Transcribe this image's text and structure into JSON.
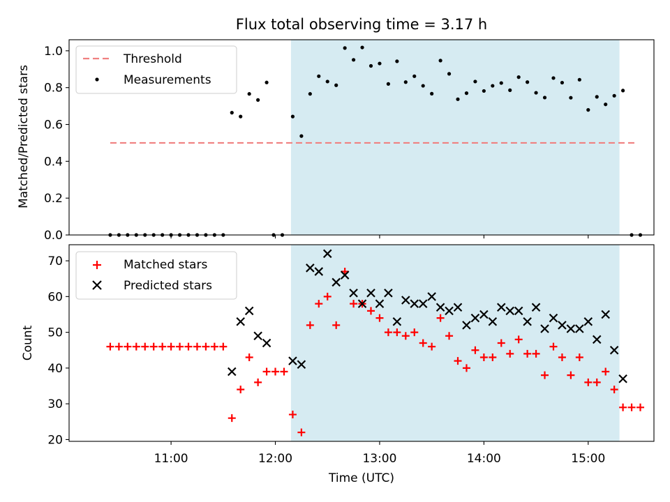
{
  "chart_data": [
    {
      "type": "scatter",
      "title": "Flux total observing time = 3.17 h",
      "ylabel": "Matched/Predicted stars",
      "ylim": [
        0,
        1.06
      ],
      "yticks": [
        "0.0",
        "0.2",
        "0.4",
        "0.6",
        "0.8",
        "1.0"
      ],
      "grid": false,
      "legend": {
        "position": "top-left",
        "entries": [
          "Threshold",
          "Measurements"
        ]
      },
      "shaded_interval": {
        "start": "12:09",
        "end": "15:18",
        "color": "#add8e6"
      },
      "threshold": {
        "name": "Threshold",
        "value": 0.5,
        "x_start": "10:25",
        "x_end": "15:28",
        "color": "#f08080",
        "style": "dashed"
      },
      "series": [
        {
          "name": "Measurements",
          "color": "#000000",
          "points": [
            [
              "10:25",
              0
            ],
            [
              "10:30",
              0
            ],
            [
              "10:35",
              0
            ],
            [
              "10:40",
              0
            ],
            [
              "10:45",
              0
            ],
            [
              "10:50",
              0
            ],
            [
              "10:55",
              0
            ],
            [
              "11:00",
              0
            ],
            [
              "11:05",
              0
            ],
            [
              "11:10",
              0
            ],
            [
              "11:15",
              0
            ],
            [
              "11:20",
              0
            ],
            [
              "11:25",
              0
            ],
            [
              "11:30",
              0
            ],
            [
              "11:35",
              0.664
            ],
            [
              "11:40",
              0.643
            ],
            [
              "11:45",
              0.766
            ],
            [
              "11:50",
              0.733
            ],
            [
              "11:55",
              0.828
            ],
            [
              "11:59",
              0
            ],
            [
              "12:04",
              0
            ],
            [
              "12:10",
              0.643
            ],
            [
              "12:15",
              0.537
            ],
            [
              "12:20",
              0.766
            ],
            [
              "12:25",
              0.862
            ],
            [
              "12:30",
              0.833
            ],
            [
              "12:35",
              0.813
            ],
            [
              "12:40",
              1.015
            ],
            [
              "12:45",
              0.951
            ],
            [
              "12:50",
              1.018
            ],
            [
              "12:55",
              0.918
            ],
            [
              "13:00",
              0.931
            ],
            [
              "13:05",
              0.82
            ],
            [
              "13:10",
              0.943
            ],
            [
              "13:15",
              0.83
            ],
            [
              "13:20",
              0.862
            ],
            [
              "13:25",
              0.81
            ],
            [
              "13:30",
              0.767
            ],
            [
              "13:35",
              0.947
            ],
            [
              "13:40",
              0.875
            ],
            [
              "13:45",
              0.737
            ],
            [
              "13:50",
              0.77
            ],
            [
              "13:55",
              0.833
            ],
            [
              "14:00",
              0.782
            ],
            [
              "14:05",
              0.81
            ],
            [
              "14:10",
              0.825
            ],
            [
              "14:15",
              0.786
            ],
            [
              "14:20",
              0.857
            ],
            [
              "14:25",
              0.83
            ],
            [
              "14:30",
              0.772
            ],
            [
              "14:35",
              0.746
            ],
            [
              "14:40",
              0.852
            ],
            [
              "14:45",
              0.827
            ],
            [
              "14:50",
              0.745
            ],
            [
              "14:55",
              0.843
            ],
            [
              "15:00",
              0.679
            ],
            [
              "15:05",
              0.75
            ],
            [
              "15:10",
              0.709
            ],
            [
              "15:15",
              0.756
            ],
            [
              "15:20",
              0.784
            ],
            [
              "15:25",
              0
            ],
            [
              "15:30",
              0
            ]
          ]
        }
      ]
    },
    {
      "type": "scatter",
      "xlabel": "Time (UTC)",
      "ylabel": "Count",
      "ylim": [
        19.5,
        74.5
      ],
      "yticks": [
        "20",
        "30",
        "40",
        "50",
        "60",
        "70"
      ],
      "xticks": [
        "11:00",
        "12:00",
        "13:00",
        "14:00",
        "15:00"
      ],
      "grid": false,
      "legend": {
        "position": "top-left",
        "entries": [
          "Matched stars",
          "Predicted stars"
        ]
      },
      "shaded_interval": {
        "start": "12:09",
        "end": "15:18",
        "color": "#add8e6"
      },
      "series": [
        {
          "name": "Matched stars",
          "color": "#ff0000",
          "marker": "plus",
          "points": [
            [
              "10:25",
              46
            ],
            [
              "10:30",
              46
            ],
            [
              "10:35",
              46
            ],
            [
              "10:40",
              46
            ],
            [
              "10:45",
              46
            ],
            [
              "10:50",
              46
            ],
            [
              "10:55",
              46
            ],
            [
              "11:00",
              46
            ],
            [
              "11:05",
              46
            ],
            [
              "11:10",
              46
            ],
            [
              "11:15",
              46
            ],
            [
              "11:20",
              46
            ],
            [
              "11:25",
              46
            ],
            [
              "11:30",
              46
            ],
            [
              "11:35",
              26
            ],
            [
              "11:40",
              34
            ],
            [
              "11:45",
              43
            ],
            [
              "11:50",
              36
            ],
            [
              "11:55",
              39
            ],
            [
              "12:00",
              39
            ],
            [
              "12:05",
              39
            ],
            [
              "12:10",
              27
            ],
            [
              "12:15",
              22
            ],
            [
              "12:20",
              52
            ],
            [
              "12:25",
              58
            ],
            [
              "12:30",
              60
            ],
            [
              "12:35",
              52
            ],
            [
              "12:40",
              67
            ],
            [
              "12:45",
              58
            ],
            [
              "12:50",
              58
            ],
            [
              "12:55",
              56
            ],
            [
              "13:00",
              54
            ],
            [
              "13:05",
              50
            ],
            [
              "13:10",
              50
            ],
            [
              "13:15",
              49
            ],
            [
              "13:20",
              50
            ],
            [
              "13:25",
              47
            ],
            [
              "13:30",
              46
            ],
            [
              "13:35",
              54
            ],
            [
              "13:40",
              49
            ],
            [
              "13:45",
              42
            ],
            [
              "13:50",
              40
            ],
            [
              "13:55",
              45
            ],
            [
              "14:00",
              43
            ],
            [
              "14:05",
              43
            ],
            [
              "14:10",
              47
            ],
            [
              "14:15",
              44
            ],
            [
              "14:20",
              48
            ],
            [
              "14:25",
              44
            ],
            [
              "14:30",
              44
            ],
            [
              "14:35",
              38
            ],
            [
              "14:40",
              46
            ],
            [
              "14:45",
              43
            ],
            [
              "14:50",
              38
            ],
            [
              "14:55",
              43
            ],
            [
              "15:00",
              36
            ],
            [
              "15:05",
              36
            ],
            [
              "15:10",
              39
            ],
            [
              "15:15",
              34
            ],
            [
              "15:20",
              29
            ],
            [
              "15:25",
              29
            ],
            [
              "15:30",
              29
            ]
          ]
        },
        {
          "name": "Predicted stars",
          "color": "#000000",
          "marker": "x",
          "points": [
            [
              "11:35",
              39
            ],
            [
              "11:40",
              53
            ],
            [
              "11:45",
              56
            ],
            [
              "11:50",
              49
            ],
            [
              "11:55",
              47
            ],
            [
              "12:10",
              42
            ],
            [
              "12:15",
              41
            ],
            [
              "12:20",
              68
            ],
            [
              "12:25",
              67
            ],
            [
              "12:30",
              72
            ],
            [
              "12:35",
              64
            ],
            [
              "12:40",
              66
            ],
            [
              "12:45",
              61
            ],
            [
              "12:50",
              58
            ],
            [
              "12:55",
              61
            ],
            [
              "13:00",
              58
            ],
            [
              "13:05",
              61
            ],
            [
              "13:10",
              53
            ],
            [
              "13:15",
              59
            ],
            [
              "13:20",
              58
            ],
            [
              "13:25",
              58
            ],
            [
              "13:30",
              60
            ],
            [
              "13:35",
              57
            ],
            [
              "13:40",
              56
            ],
            [
              "13:45",
              57
            ],
            [
              "13:50",
              52
            ],
            [
              "13:55",
              54
            ],
            [
              "14:00",
              55
            ],
            [
              "14:05",
              53
            ],
            [
              "14:10",
              57
            ],
            [
              "14:15",
              56
            ],
            [
              "14:20",
              56
            ],
            [
              "14:25",
              53
            ],
            [
              "14:30",
              57
            ],
            [
              "14:35",
              51
            ],
            [
              "14:40",
              54
            ],
            [
              "14:45",
              52
            ],
            [
              "14:50",
              51
            ],
            [
              "14:55",
              51
            ],
            [
              "15:00",
              53
            ],
            [
              "15:05",
              48
            ],
            [
              "15:10",
              55
            ],
            [
              "15:15",
              45
            ],
            [
              "15:20",
              37
            ]
          ]
        }
      ]
    }
  ]
}
